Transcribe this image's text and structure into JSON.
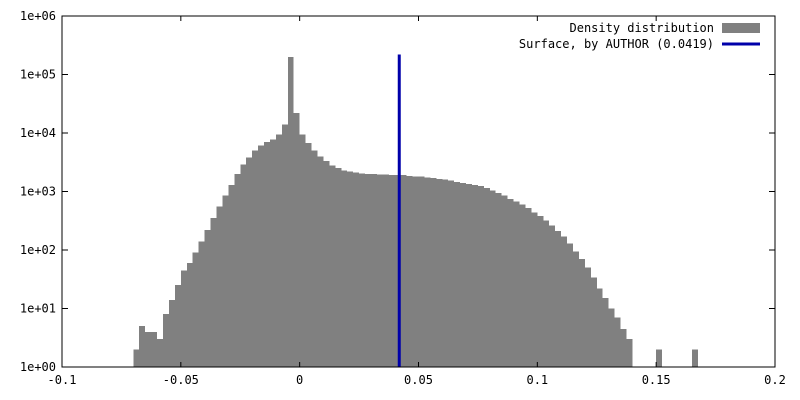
{
  "chart_data": {
    "type": "bar",
    "title": "",
    "xlabel": "",
    "ylabel": "",
    "x_range": [
      -0.1,
      0.2
    ],
    "y_range": [
      1,
      1000000
    ],
    "y_scale": "log",
    "grid": false,
    "legend_position": "top-right",
    "x_ticks": [
      {
        "value": -0.1,
        "label": "-0.1"
      },
      {
        "value": -0.05,
        "label": "-0.05"
      },
      {
        "value": 0,
        "label": "0"
      },
      {
        "value": 0.05,
        "label": "0.05"
      },
      {
        "value": 0.1,
        "label": "0.1"
      },
      {
        "value": 0.15,
        "label": "0.15"
      },
      {
        "value": 0.2,
        "label": "0.2"
      }
    ],
    "y_ticks": [
      {
        "value": 1,
        "label": "1e+00"
      },
      {
        "value": 10,
        "label": "1e+01"
      },
      {
        "value": 100,
        "label": "1e+02"
      },
      {
        "value": 1000,
        "label": "1e+03"
      },
      {
        "value": 10000,
        "label": "1e+04"
      },
      {
        "value": 100000,
        "label": "1e+05"
      },
      {
        "value": 1000000,
        "label": "1e+06"
      }
    ],
    "series": [
      {
        "name": "Density distribution",
        "kind": "histogram",
        "color": "#808080",
        "bin_width": 0.0025,
        "bins_start": [
          -0.07,
          -0.0675,
          -0.065,
          -0.0625,
          -0.06,
          -0.0575,
          -0.055,
          -0.0525,
          -0.05,
          -0.0475,
          -0.045,
          -0.0425,
          -0.04,
          -0.0375,
          -0.035,
          -0.0325,
          -0.03,
          -0.0275,
          -0.025,
          -0.0225,
          -0.02,
          -0.0175,
          -0.015,
          -0.0125,
          -0.01,
          -0.0075,
          -0.005,
          -0.0025,
          0,
          0.0025,
          0.005,
          0.0075,
          0.01,
          0.0125,
          0.015,
          0.0175,
          0.02,
          0.0225,
          0.025,
          0.0275,
          0.03,
          0.0325,
          0.035,
          0.0375,
          0.04,
          0.0425,
          0.045,
          0.0475,
          0.05,
          0.0525,
          0.055,
          0.0575,
          0.06,
          0.0625,
          0.065,
          0.0675,
          0.07,
          0.0725,
          0.075,
          0.0775,
          0.08,
          0.0825,
          0.085,
          0.0875,
          0.09,
          0.0925,
          0.095,
          0.0975,
          0.1,
          0.1025,
          0.105,
          0.1075,
          0.11,
          0.1125,
          0.115,
          0.1175,
          0.12,
          0.1225,
          0.125,
          0.1275,
          0.13,
          0.1325,
          0.135,
          0.1375,
          0.14,
          0.1425,
          0.145,
          0.1475,
          0.15,
          0.1525,
          0.155,
          0.1575,
          0.16,
          0.1625,
          0.165
        ],
        "values": [
          2,
          5,
          4,
          4,
          3,
          8,
          14,
          25,
          45,
          60,
          90,
          140,
          220,
          350,
          550,
          850,
          1300,
          2000,
          2900,
          3800,
          5000,
          6100,
          7000,
          7800,
          9500,
          14000,
          200000,
          22000,
          9500,
          6700,
          5000,
          4000,
          3300,
          2800,
          2500,
          2300,
          2200,
          2100,
          2050,
          2000,
          2000,
          1950,
          1950,
          1900,
          1900,
          1900,
          1850,
          1800,
          1800,
          1750,
          1700,
          1650,
          1600,
          1550,
          1450,
          1400,
          1350,
          1300,
          1250,
          1150,
          1050,
          950,
          850,
          750,
          680,
          600,
          520,
          440,
          380,
          320,
          260,
          210,
          170,
          130,
          95,
          70,
          50,
          34,
          22,
          15,
          10,
          7,
          4.5,
          3,
          0,
          0,
          0,
          0,
          2,
          0,
          0,
          0,
          0,
          0,
          2
        ]
      },
      {
        "name": "Surface, by AUTHOR (0.0419)",
        "kind": "vertical_line",
        "color": "#0000aa",
        "x": 0.0419,
        "y_top": 220000
      }
    ]
  }
}
